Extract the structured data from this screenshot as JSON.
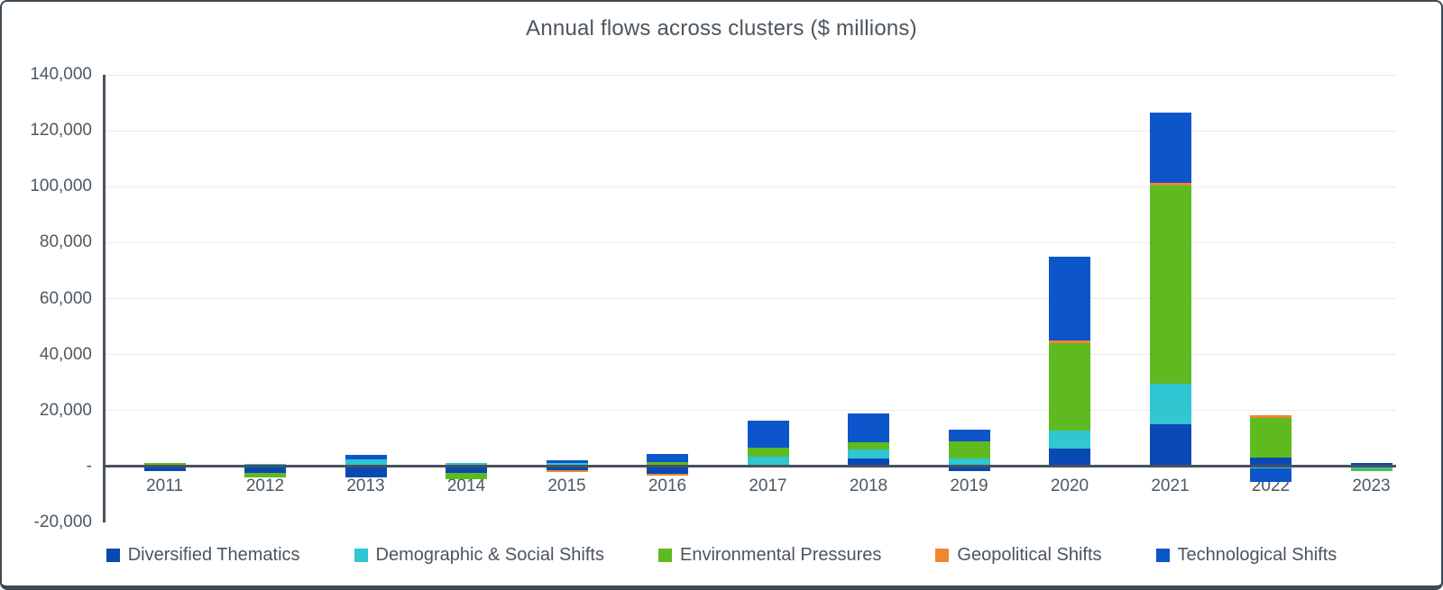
{
  "title": "Annual flows across clusters ($ millions)",
  "chart_data": {
    "type": "bar",
    "stacked": true,
    "title": "Annual flows across clusters ($ millions)",
    "xlabel": "",
    "ylabel": "",
    "ylim": [
      -20000,
      140000
    ],
    "grid": true,
    "legend_position": "bottom",
    "categories": [
      "2011",
      "2012",
      "2013",
      "2014",
      "2015",
      "2016",
      "2017",
      "2018",
      "2019",
      "2020",
      "2021",
      "2022",
      "2023"
    ],
    "yticks": [
      {
        "value": 140000,
        "label": "140,000"
      },
      {
        "value": 120000,
        "label": "120,000"
      },
      {
        "value": 100000,
        "label": "100,000"
      },
      {
        "value": 80000,
        "label": "80,000"
      },
      {
        "value": 60000,
        "label": "60,000"
      },
      {
        "value": 40000,
        "label": "40,000"
      },
      {
        "value": 20000,
        "label": "20,000"
      },
      {
        "value": 0,
        "label": "-"
      },
      {
        "value": -20000,
        "label": "-20,000"
      }
    ],
    "series": [
      {
        "name": "Diversified Thematics",
        "color": "#0a49b4",
        "values": [
          -1500,
          -2300,
          -4000,
          -2300,
          -1300,
          -2600,
          0,
          3000,
          -1700,
          6300,
          15000,
          3300,
          1400
        ]
      },
      {
        "name": "Demographic & Social Shifts",
        "color": "#30c6d2",
        "values": [
          0,
          800,
          2500,
          1400,
          1200,
          0,
          3500,
          3100,
          2900,
          6500,
          14500,
          -600,
          -1000
        ]
      },
      {
        "name": "Environmental Pressures",
        "color": "#5eba1f",
        "values": [
          1200,
          -1700,
          0,
          -2200,
          0,
          1500,
          3300,
          2600,
          6100,
          31400,
          71000,
          14100,
          -500
        ]
      },
      {
        "name": "Geopolitical Shifts",
        "color": "#f0862d",
        "values": [
          0,
          0,
          0,
          0,
          -750,
          -750,
          0,
          0,
          0,
          900,
          800,
          750,
          0
        ]
      },
      {
        "name": "Technological Shifts",
        "color": "#0d55cb",
        "values": [
          0,
          0,
          1800,
          0,
          1100,
          3100,
          9700,
          10100,
          4300,
          30000,
          25300,
          -5000,
          0
        ]
      }
    ]
  }
}
